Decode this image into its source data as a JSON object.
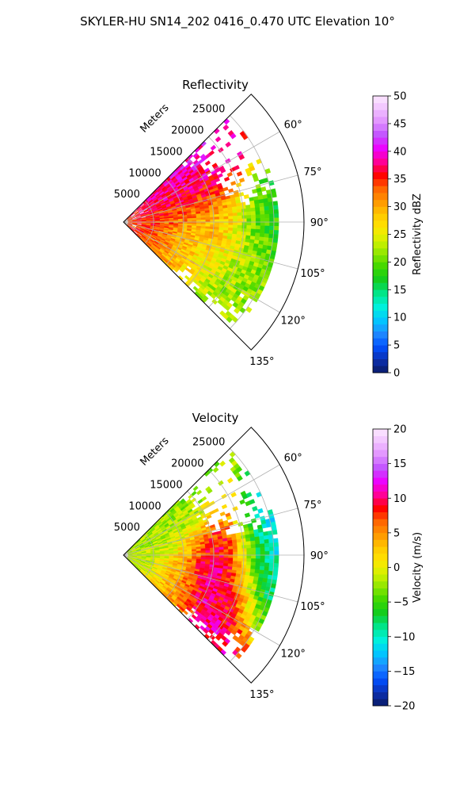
{
  "figure_title": "SKYLER-HU  SN14_202  0416_0.470 UTC Elevation 10°",
  "chart_data": [
    {
      "type": "heatmap",
      "subtype": "polar-sector radar PPI",
      "title": "Reflectivity",
      "radial_label": "Meters",
      "range_ticks": [
        "5000",
        "10000",
        "15000",
        "20000",
        "25000"
      ],
      "range_values": [
        5000,
        10000,
        15000,
        20000,
        25000
      ],
      "range_max": 30000,
      "angle_ticks": [
        "60°",
        "75°",
        "90°",
        "105°",
        "120°",
        "135°"
      ],
      "angle_values": [
        60,
        75,
        90,
        105,
        120,
        135
      ],
      "angle_range_deg": [
        45,
        135
      ],
      "grid": true,
      "colorbar": {
        "label": "Reflectivity dBZ",
        "ticks": [
          "0",
          "5",
          "10",
          "15",
          "20",
          "25",
          "30",
          "35",
          "40",
          "45",
          "50"
        ],
        "range": [
          0,
          50
        ],
        "palette": [
          "#0a1a66",
          "#0b2fb0",
          "#0050ff",
          "#1f8cff",
          "#00c8ff",
          "#00f0dc",
          "#00e68c",
          "#10cc20",
          "#3cd700",
          "#8ce600",
          "#d2f200",
          "#ffe600",
          "#ffc800",
          "#ff9600",
          "#ff6400",
          "#ff0000",
          "#ff0096",
          "#ee00ff",
          "#c050ff",
          "#e090ff",
          "#f0c0ff",
          "#fce8ff"
        ]
      },
      "features": [
        {
          "r": 9000,
          "theta": 73,
          "value": 40
        },
        {
          "r": 11500,
          "theta": 70,
          "value": 42
        },
        {
          "r": 12500,
          "theta": 78,
          "value": 36
        },
        {
          "r": 8000,
          "theta": 102,
          "value": 33
        },
        {
          "r": 15000,
          "theta": 100,
          "value": 37
        },
        {
          "r": 16000,
          "theta": 94,
          "value": 28
        },
        {
          "r": 12000,
          "theta": 94,
          "value": 14
        },
        {
          "r": 20000,
          "theta": 98,
          "value": 20
        },
        {
          "r": 22000,
          "theta": 108,
          "value": 22
        },
        {
          "r": 18500,
          "theta": 115,
          "value": 22
        },
        {
          "r": 24000,
          "theta": 93,
          "value": 17
        }
      ]
    },
    {
      "type": "heatmap",
      "subtype": "polar-sector radar PPI",
      "title": "Velocity",
      "radial_label": "Meters",
      "range_ticks": [
        "5000",
        "10000",
        "15000",
        "20000",
        "25000"
      ],
      "range_values": [
        5000,
        10000,
        15000,
        20000,
        25000
      ],
      "range_max": 30000,
      "angle_ticks": [
        "60°",
        "75°",
        "90°",
        "105°",
        "120°",
        "135°"
      ],
      "angle_values": [
        60,
        75,
        90,
        105,
        120,
        135
      ],
      "angle_range_deg": [
        45,
        135
      ],
      "grid": true,
      "colorbar": {
        "label": "Velocity (m/s)",
        "ticks": [
          "−20",
          "−15",
          "−10",
          "−5",
          "0",
          "5",
          "10",
          "15",
          "20"
        ],
        "range": [
          -20,
          20
        ],
        "palette": [
          "#0a1a66",
          "#0b2fb0",
          "#0050ff",
          "#1f8cff",
          "#00c8ff",
          "#00f0dc",
          "#00e68c",
          "#10cc20",
          "#3cd700",
          "#8ce600",
          "#d2f200",
          "#ffe600",
          "#ffc800",
          "#ff9600",
          "#ff6400",
          "#ff0000",
          "#ff0096",
          "#ee00ff",
          "#c050ff",
          "#e090ff",
          "#f0c0ff",
          "#fce8ff"
        ]
      },
      "features": [
        {
          "r": 9000,
          "theta": 66,
          "value": -3
        },
        {
          "r": 10000,
          "theta": 110,
          "value": 4
        },
        {
          "r": 14000,
          "theta": 95,
          "value": 10
        },
        {
          "r": 18000,
          "theta": 100,
          "value": 15
        },
        {
          "r": 19000,
          "theta": 115,
          "value": 11
        },
        {
          "r": 23000,
          "theta": 93,
          "value": -12
        },
        {
          "r": 24000,
          "theta": 105,
          "value": -11
        },
        {
          "r": 5000,
          "theta": 80,
          "value": -2
        }
      ]
    }
  ]
}
